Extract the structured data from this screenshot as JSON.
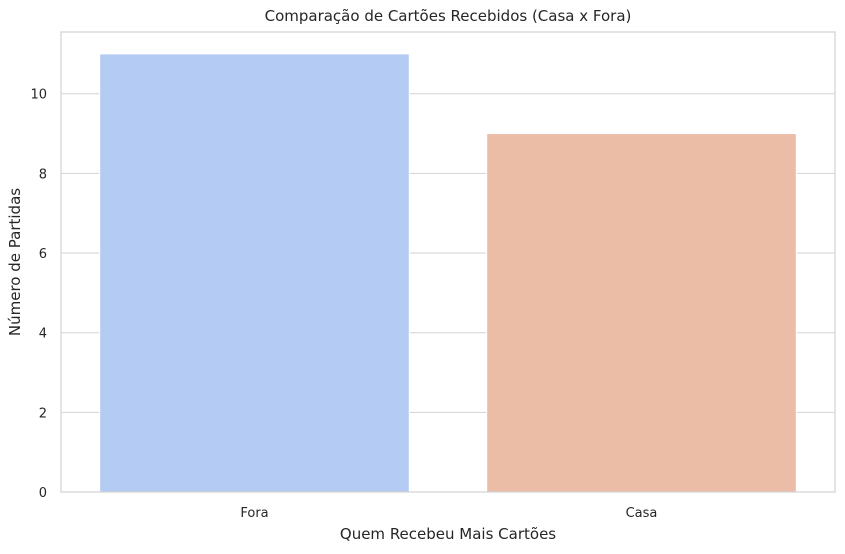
{
  "chart_data": {
    "type": "bar",
    "title": "Comparação de Cartões Recebidos (Casa x Fora)",
    "xlabel": "Quem Recebeu Mais Cartões",
    "ylabel": "Número de Partidas",
    "categories": [
      "Fora",
      "Casa"
    ],
    "values": [
      11,
      9
    ],
    "colors": [
      "#b4cbf4",
      "#ebbda6"
    ],
    "ylim": [
      0,
      11.55
    ],
    "yticks": [
      0,
      2,
      4,
      6,
      8,
      10
    ],
    "grid": true,
    "grid_axis": "y",
    "legend": false
  },
  "style": {
    "grid_color": "#d3d3d3",
    "spine_color": "#d3d3d3",
    "bar_edge_color": "#ffffff",
    "text_color": "#262626"
  }
}
